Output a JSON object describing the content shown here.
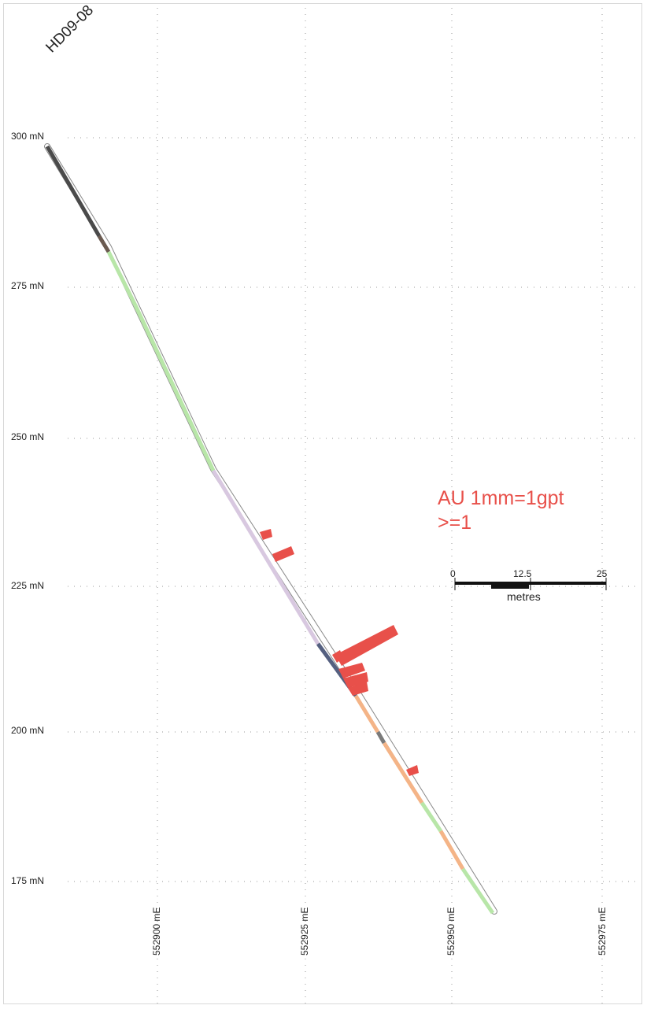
{
  "drillhole": {
    "id": "HD09-08"
  },
  "northing_labels": [
    {
      "value": 300,
      "text": "300 mN"
    },
    {
      "value": 275,
      "text": "275 mN"
    },
    {
      "value": 250,
      "text": "250 mN"
    },
    {
      "value": 225,
      "text": "225 mN"
    },
    {
      "value": 200,
      "text": "200 mN"
    },
    {
      "value": 175,
      "text": "175 mN"
    }
  ],
  "easting_labels": [
    {
      "value": 552900,
      "text": "552900 mE"
    },
    {
      "value": 552925,
      "text": "552925 mE"
    },
    {
      "value": 552950,
      "text": "552950 mE"
    },
    {
      "value": 552975,
      "text": "552975 mE"
    }
  ],
  "legend": {
    "line1": "AU 1mm=1gpt",
    "line2": ">=1",
    "color": "#e8504a"
  },
  "scale_bar": {
    "ticks": [
      "0",
      "12.5",
      "25"
    ],
    "unit": "metres"
  },
  "lithology_colors": {
    "dark_grey": "#4a4a4a",
    "light_green": "#b8e6a8",
    "lavender": "#d8c8e0",
    "slate_blue": "#556080",
    "orange": "#f4b487",
    "au_red": "#e8504a"
  }
}
